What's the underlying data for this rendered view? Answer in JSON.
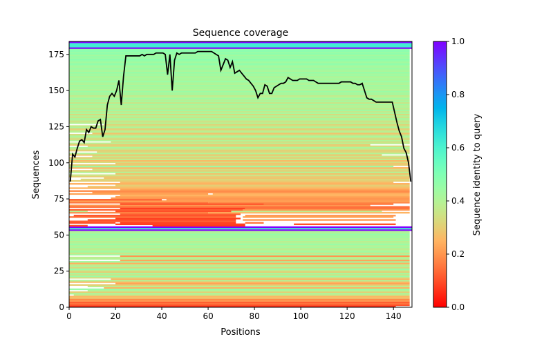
{
  "chart_data": {
    "type": "heatmap",
    "title": "Sequence coverage",
    "xlabel": "Positions",
    "ylabel": "Sequences",
    "xlim": [
      0,
      148
    ],
    "ylim": [
      0,
      184
    ],
    "xticks": [
      0,
      20,
      40,
      60,
      80,
      100,
      120,
      140
    ],
    "yticks": [
      0,
      25,
      50,
      75,
      100,
      125,
      150,
      175
    ],
    "grid": false,
    "colormap": "rainbow_r",
    "colorbar": {
      "label": "Sequence identity to query",
      "range": [
        0,
        1
      ],
      "ticks": [
        "0.0",
        "0.2",
        "0.4",
        "0.6",
        "0.8",
        "1.0"
      ]
    },
    "coverage_line_color": "#000000",
    "coverage": [
      87,
      106,
      104,
      110,
      115,
      116,
      114,
      123,
      121,
      125,
      124,
      124,
      129,
      130,
      118,
      123,
      140,
      146,
      148,
      146,
      150,
      157,
      140,
      160,
      174,
      174,
      174,
      174,
      174,
      174,
      174,
      175,
      174,
      175,
      175,
      175,
      175,
      176,
      176,
      176,
      176,
      175,
      161,
      175,
      150,
      171,
      176,
      175,
      176,
      176,
      176,
      176,
      176,
      176,
      176,
      177,
      177,
      177,
      177,
      177,
      177,
      177,
      176,
      175,
      174,
      164,
      168,
      172,
      171,
      166,
      170,
      162,
      163,
      164,
      162,
      160,
      158,
      157,
      155,
      153,
      150,
      145,
      148,
      148,
      154,
      153,
      148,
      148,
      152,
      153,
      154,
      155,
      155,
      156,
      159,
      158,
      157,
      157,
      157,
      158,
      158,
      158,
      158,
      157,
      157,
      157,
      156,
      155,
      155,
      155,
      155,
      155,
      155,
      155,
      155,
      155,
      155,
      156,
      156,
      156,
      156,
      156,
      155,
      155,
      154,
      154,
      155,
      150,
      145,
      144,
      144,
      143,
      142,
      142,
      142,
      142,
      142,
      142,
      142,
      142,
      135,
      128,
      122,
      118,
      110,
      107,
      100,
      87
    ],
    "segments_columns": [
      "row",
      "identity",
      "start",
      "end"
    ],
    "segments": [
      [
        0,
        0.05,
        0,
        141
      ],
      [
        1,
        0.1,
        0,
        147
      ],
      [
        2,
        0.15,
        0,
        147
      ],
      [
        3,
        0.12,
        0,
        147
      ],
      [
        4,
        0.2,
        0,
        147
      ],
      [
        5,
        0.18,
        0,
        147
      ],
      [
        6,
        0.28,
        0,
        147
      ],
      [
        7,
        0.25,
        0,
        147
      ],
      [
        8,
        0.35,
        2,
        147
      ],
      [
        9,
        0.42,
        0,
        147
      ],
      [
        10,
        0.3,
        0,
        147
      ],
      [
        11,
        0.4,
        8,
        147
      ],
      [
        12,
        0.45,
        0,
        147
      ],
      [
        13,
        0.25,
        15,
        147
      ],
      [
        14,
        0.38,
        8,
        147
      ],
      [
        15,
        0.3,
        0,
        147
      ],
      [
        16,
        0.22,
        20,
        147
      ],
      [
        17,
        0.26,
        0,
        147
      ],
      [
        18,
        0.4,
        0,
        147
      ],
      [
        19,
        0.25,
        18,
        147
      ],
      [
        20,
        0.33,
        0,
        147
      ],
      [
        21,
        0.44,
        0,
        147
      ],
      [
        22,
        0.35,
        0,
        147
      ],
      [
        23,
        0.42,
        0,
        147
      ],
      [
        24,
        0.3,
        0,
        147
      ],
      [
        25,
        0.37,
        0,
        147
      ],
      [
        26,
        0.45,
        0,
        147
      ],
      [
        27,
        0.32,
        0,
        147
      ],
      [
        28,
        0.41,
        0,
        147
      ],
      [
        29,
        0.36,
        0,
        147
      ],
      [
        30,
        0.24,
        0,
        147
      ],
      [
        31,
        0.43,
        0,
        147
      ],
      [
        32,
        0.22,
        22,
        147
      ],
      [
        33,
        0.4,
        0,
        147
      ],
      [
        34,
        0.38,
        0,
        147
      ],
      [
        35,
        0.2,
        22,
        147
      ],
      [
        36,
        0.42,
        0,
        147
      ],
      [
        37,
        0.35,
        0,
        147
      ],
      [
        38,
        0.44,
        0,
        147
      ],
      [
        39,
        0.4,
        0,
        147
      ],
      [
        40,
        0.37,
        0,
        147
      ],
      [
        41,
        0.43,
        0,
        147
      ],
      [
        42,
        0.39,
        0,
        147
      ],
      [
        43,
        0.45,
        0,
        147
      ],
      [
        44,
        0.41,
        0,
        147
      ],
      [
        45,
        0.38,
        0,
        147
      ],
      [
        46,
        0.43,
        0,
        147
      ],
      [
        47,
        0.4,
        0,
        147
      ],
      [
        48,
        0.44,
        0,
        147
      ],
      [
        49,
        0.42,
        0,
        147
      ],
      [
        50,
        0.46,
        0,
        147
      ],
      [
        51,
        0.41,
        0,
        147
      ],
      [
        52,
        0.4,
        0,
        147
      ],
      [
        53,
        1.0,
        0,
        148
      ],
      [
        54,
        0.62,
        0,
        148
      ],
      [
        55,
        1.0,
        0,
        148
      ],
      [
        56,
        0.07,
        36,
        76
      ],
      [
        56,
        0.1,
        0,
        8
      ],
      [
        57,
        0.08,
        20,
        76
      ],
      [
        57,
        0.1,
        97,
        141
      ],
      [
        58,
        0.1,
        0,
        20
      ],
      [
        58,
        0.08,
        22,
        72
      ],
      [
        58,
        0.15,
        76,
        84
      ],
      [
        59,
        0.12,
        0,
        72
      ],
      [
        60,
        0.1,
        8,
        72
      ],
      [
        60,
        0.2,
        75,
        141
      ],
      [
        61,
        0.08,
        20,
        74
      ],
      [
        62,
        0.15,
        0,
        72
      ],
      [
        62,
        0.22,
        75,
        140
      ],
      [
        63,
        0.1,
        2,
        72
      ],
      [
        63,
        0.2,
        76,
        141
      ],
      [
        64,
        0.12,
        22,
        74
      ],
      [
        65,
        0.18,
        0,
        60
      ],
      [
        65,
        0.25,
        60,
        147
      ],
      [
        66,
        0.4,
        0,
        8
      ],
      [
        66,
        0.1,
        20,
        70
      ],
      [
        66,
        0.38,
        70,
        135
      ],
      [
        67,
        0.12,
        0,
        75
      ],
      [
        67,
        0.2,
        75,
        147
      ],
      [
        68,
        0.08,
        22,
        76
      ],
      [
        68,
        0.15,
        76,
        147
      ],
      [
        69,
        0.14,
        0,
        147
      ],
      [
        70,
        0.2,
        0,
        130
      ],
      [
        71,
        0.1,
        22,
        84
      ],
      [
        71,
        0.15,
        84,
        140
      ],
      [
        72,
        0.15,
        0,
        60
      ],
      [
        72,
        0.18,
        60,
        147
      ],
      [
        73,
        0.22,
        0,
        147
      ],
      [
        74,
        0.12,
        0,
        40
      ],
      [
        74,
        0.2,
        42,
        147
      ],
      [
        75,
        0.2,
        18,
        147
      ],
      [
        76,
        0.22,
        20,
        147
      ],
      [
        77,
        0.25,
        22,
        147
      ],
      [
        78,
        0.22,
        0,
        60
      ],
      [
        78,
        0.25,
        62,
        147
      ],
      [
        79,
        0.2,
        10,
        147
      ],
      [
        80,
        0.18,
        0,
        147
      ],
      [
        81,
        0.22,
        22,
        147
      ],
      [
        82,
        0.25,
        0,
        147
      ],
      [
        83,
        0.28,
        8,
        147
      ],
      [
        84,
        0.3,
        20,
        147
      ],
      [
        85,
        0.24,
        0,
        147
      ],
      [
        86,
        0.26,
        22,
        140
      ],
      [
        87,
        0.3,
        0,
        147
      ],
      [
        88,
        0.32,
        5,
        147
      ],
      [
        89,
        0.28,
        15,
        147
      ],
      [
        90,
        0.3,
        0,
        147
      ],
      [
        91,
        0.35,
        0,
        147
      ],
      [
        92,
        0.27,
        20,
        147
      ],
      [
        93,
        0.4,
        0,
        147
      ],
      [
        94,
        0.3,
        0,
        147
      ],
      [
        95,
        0.34,
        10,
        147
      ],
      [
        96,
        0.25,
        0,
        147
      ],
      [
        97,
        0.45,
        0,
        140
      ],
      [
        98,
        0.3,
        0,
        147
      ],
      [
        99,
        0.28,
        20,
        147
      ],
      [
        100,
        0.33,
        0,
        147
      ],
      [
        101,
        0.26,
        0,
        147
      ],
      [
        102,
        0.38,
        0,
        147
      ],
      [
        103,
        0.3,
        0,
        147
      ],
      [
        104,
        0.36,
        10,
        147
      ],
      [
        105,
        0.28,
        0,
        135
      ],
      [
        106,
        0.4,
        0,
        147
      ],
      [
        107,
        0.32,
        12,
        147
      ],
      [
        108,
        0.3,
        0,
        147
      ],
      [
        109,
        0.35,
        0,
        147
      ],
      [
        110,
        0.42,
        0,
        147
      ],
      [
        111,
        0.33,
        8,
        147
      ],
      [
        112,
        0.29,
        0,
        130
      ],
      [
        113,
        0.38,
        0,
        147
      ],
      [
        114,
        0.34,
        18,
        147
      ],
      [
        115,
        0.4,
        0,
        147
      ],
      [
        116,
        0.31,
        0,
        147
      ],
      [
        117,
        0.37,
        0,
        147
      ],
      [
        118,
        0.42,
        0,
        147
      ],
      [
        119,
        0.33,
        0,
        147
      ],
      [
        120,
        0.28,
        10,
        147
      ],
      [
        121,
        0.39,
        0,
        147
      ],
      [
        122,
        0.35,
        0,
        147
      ],
      [
        123,
        0.3,
        0,
        147
      ],
      [
        124,
        0.41,
        0,
        147
      ],
      [
        125,
        0.36,
        0,
        147
      ],
      [
        126,
        0.31,
        15,
        147
      ],
      [
        127,
        0.4,
        0,
        147
      ],
      [
        128,
        0.34,
        0,
        147
      ],
      [
        129,
        0.38,
        0,
        147
      ],
      [
        130,
        0.43,
        0,
        147
      ],
      [
        131,
        0.35,
        0,
        147
      ],
      [
        132,
        0.4,
        0,
        147
      ],
      [
        133,
        0.33,
        0,
        147
      ],
      [
        134,
        0.42,
        0,
        147
      ],
      [
        135,
        0.37,
        0,
        147
      ],
      [
        136,
        0.44,
        0,
        147
      ],
      [
        137,
        0.36,
        0,
        147
      ],
      [
        138,
        0.41,
        0,
        147
      ],
      [
        139,
        0.38,
        0,
        147
      ],
      [
        140,
        0.43,
        0,
        147
      ],
      [
        141,
        0.35,
        0,
        147
      ],
      [
        142,
        0.42,
        0,
        147
      ],
      [
        143,
        0.39,
        0,
        147
      ],
      [
        144,
        0.44,
        0,
        147
      ],
      [
        145,
        0.4,
        0,
        147
      ],
      [
        146,
        0.37,
        0,
        147
      ],
      [
        147,
        0.43,
        0,
        147
      ],
      [
        148,
        0.41,
        0,
        147
      ],
      [
        149,
        0.45,
        0,
        147
      ],
      [
        150,
        0.39,
        0,
        147
      ],
      [
        151,
        0.43,
        0,
        147
      ],
      [
        152,
        0.41,
        0,
        147
      ],
      [
        153,
        0.44,
        0,
        147
      ],
      [
        154,
        0.4,
        0,
        147
      ],
      [
        155,
        0.42,
        0,
        147
      ],
      [
        156,
        0.45,
        0,
        147
      ],
      [
        157,
        0.41,
        0,
        147
      ],
      [
        158,
        0.43,
        0,
        147
      ],
      [
        159,
        0.4,
        0,
        147
      ],
      [
        160,
        0.44,
        0,
        147
      ],
      [
        161,
        0.42,
        0,
        147
      ],
      [
        162,
        0.46,
        0,
        147
      ],
      [
        163,
        0.41,
        0,
        147
      ],
      [
        164,
        0.43,
        0,
        147
      ],
      [
        165,
        0.45,
        0,
        147
      ],
      [
        166,
        0.42,
        0,
        147
      ],
      [
        167,
        0.44,
        0,
        147
      ],
      [
        168,
        0.47,
        0,
        147
      ],
      [
        169,
        0.43,
        0,
        147
      ],
      [
        170,
        0.45,
        0,
        147
      ],
      [
        171,
        0.48,
        0,
        147
      ],
      [
        172,
        0.44,
        0,
        147
      ],
      [
        173,
        0.46,
        0,
        147
      ],
      [
        174,
        0.43,
        0,
        147
      ],
      [
        175,
        0.47,
        0,
        147
      ],
      [
        176,
        0.45,
        0,
        147
      ],
      [
        177,
        0.48,
        0,
        147
      ],
      [
        178,
        0.46,
        0,
        147
      ],
      [
        179,
        1.0,
        0,
        148
      ],
      [
        180,
        0.62,
        0,
        148
      ],
      [
        181,
        0.62,
        0,
        148
      ],
      [
        182,
        0.62,
        0,
        148
      ],
      [
        183,
        1.0,
        0,
        148
      ]
    ]
  }
}
